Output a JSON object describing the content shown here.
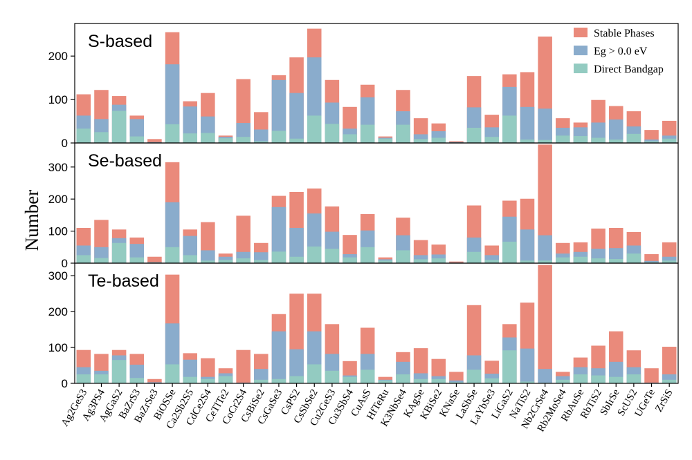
{
  "chart_data": {
    "type": "bar",
    "ylabel": "Number",
    "categories": [
      "Ag2GeS3",
      "Ag3PS4",
      "AgGaS2",
      "BaZrS3",
      "BaZrSe3",
      "BiOSSe",
      "Ca2Sb2S5",
      "CdCe2S4",
      "CeTlTe2",
      "CoCr2S4",
      "CsBiSe2",
      "CsGaSe3",
      "CsPS2",
      "CsSbSe2",
      "Cu2GeS3",
      "Cu3SbS4",
      "CuAsS",
      "HfTeRu",
      "K3NbSe4",
      "KAgSe",
      "KBiSe2",
      "KNaSe",
      "LaSbSe",
      "LaYbSe3",
      "LiGaS2",
      "NaTiS2",
      "Nb2CrSe4",
      "Rb2MoSe4",
      "RbAuSe",
      "RbTiS2",
      "SbIrSe",
      "ScUS2",
      "UGeTe",
      "ZrSiS"
    ],
    "legend": [
      {
        "name": "Stable Phases",
        "color": "#ea8a7b"
      },
      {
        "name": "Eg > 0.0 eV",
        "color": "#8aaccc"
      },
      {
        "name": "Direct Bandgap",
        "color": "#93cbc1"
      }
    ],
    "legend_position": "top-right",
    "panels": [
      {
        "title": "S-based",
        "ylim": [
          0,
          275
        ],
        "yticks": [
          "0",
          "100",
          "200"
        ],
        "series": [
          {
            "name": "Stable Phases",
            "values": [
              112,
              122,
              108,
              63,
              9,
              255,
              96,
              115,
              17,
              147,
              71,
              156,
              197,
              263,
              145,
              83,
              134,
              15,
              122,
              57,
              45,
              4,
              154,
              65,
              158,
              163,
              245,
              57,
              47,
              99,
              85,
              73,
              30,
              51
            ]
          },
          {
            "name": "Eg > 0.0 eV",
            "values": [
              63,
              55,
              88,
              55,
              2,
              181,
              84,
              61,
              14,
              46,
              31,
              145,
              115,
              197,
              93,
              33,
              105,
              12,
              73,
              20,
              27,
              2,
              82,
              36,
              129,
              83,
              79,
              35,
              36,
              47,
              54,
              38,
              8,
              17
            ]
          },
          {
            "name": "Direct Bandgap",
            "values": [
              33,
              25,
              74,
              15,
              1,
              43,
              22,
              23,
              11,
              14,
              4,
              28,
              10,
              63,
              44,
              20,
              42,
              10,
              42,
              9,
              12,
              1,
              35,
              14,
              63,
              8,
              7,
              17,
              16,
              12,
              8,
              21,
              4,
              10
            ]
          }
        ]
      },
      {
        "title": "Se-based",
        "ylim": [
          0,
          375
        ],
        "yticks": [
          "0",
          "100",
          "200",
          "300"
        ],
        "series": [
          {
            "name": "Stable Phases",
            "values": [
              110,
              135,
              105,
              80,
              20,
              315,
              105,
              128,
              30,
              148,
              63,
              210,
              222,
              233,
              177,
              88,
              153,
              18,
              142,
              72,
              58,
              5,
              180,
              55,
              195,
              201,
              370,
              63,
              65,
              108,
              110,
              97,
              28,
              65
            ]
          },
          {
            "name": "Eg > 0.0 eV",
            "values": [
              55,
              50,
              78,
              60,
              3,
              190,
              85,
              40,
              20,
              35,
              34,
              175,
              110,
              155,
              98,
              28,
              102,
              12,
              87,
              25,
              27,
              2,
              80,
              25,
              145,
              105,
              87,
              30,
              35,
              45,
              47,
              55,
              7,
              20
            ]
          },
          {
            "name": "Direct Bandgap",
            "values": [
              25,
              16,
              63,
              18,
              2,
              50,
              25,
              8,
              10,
              15,
              10,
              36,
              20,
              52,
              45,
              18,
              50,
              8,
              40,
              12,
              15,
              1,
              35,
              10,
              67,
              8,
              8,
              18,
              20,
              15,
              13,
              30,
              3,
              8
            ]
          }
        ]
      },
      {
        "title": "Te-based",
        "ylim": [
          0,
          335
        ],
        "yticks": [
          "0",
          "100",
          "200",
          "300"
        ],
        "series": [
          {
            "name": "Stable Phases",
            "values": [
              93,
              82,
              93,
              82,
              12,
              303,
              84,
              70,
              42,
              93,
              82,
              193,
              250,
              250,
              165,
              62,
              155,
              18,
              87,
              98,
              68,
              32,
              218,
              63,
              165,
              225,
              330,
              32,
              72,
              105,
              145,
              92,
              42,
              102
            ]
          },
          {
            "name": "Eg > 0.0 eV",
            "values": [
              45,
              35,
              78,
              52,
              3,
              167,
              66,
              18,
              28,
              2,
              40,
              145,
              95,
              145,
              82,
              22,
              82,
              10,
              60,
              28,
              20,
              8,
              78,
              27,
              128,
              97,
              40,
              20,
              45,
              42,
              60,
              45,
              2,
              25
            ]
          },
          {
            "name": "Direct Bandgap",
            "values": [
              25,
              25,
              65,
              15,
              1,
              53,
              18,
              12,
              20,
              1,
              10,
              12,
              20,
              53,
              35,
              18,
              38,
              8,
              25,
              12,
              12,
              3,
              38,
              14,
              92,
              5,
              2,
              10,
              25,
              22,
              18,
              25,
              1,
              10
            ]
          }
        ]
      }
    ]
  }
}
